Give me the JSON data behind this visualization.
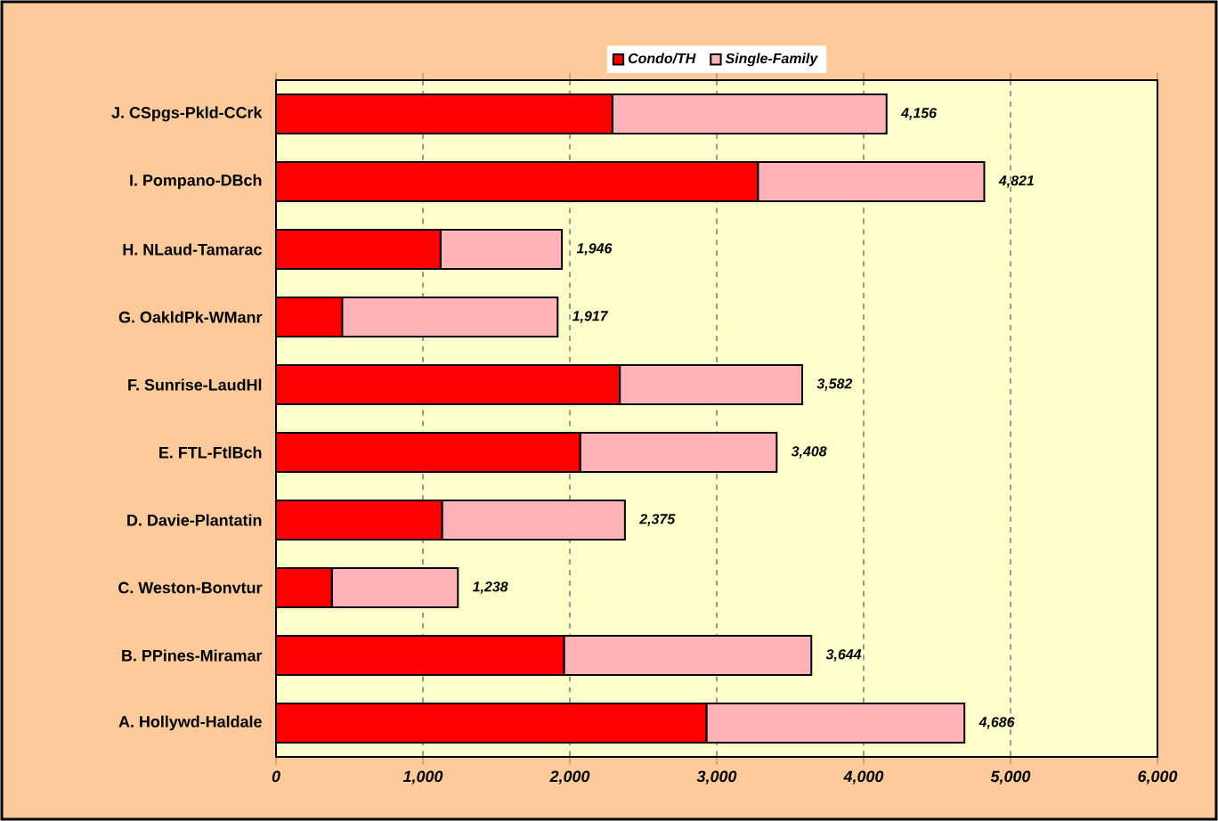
{
  "chart_data": {
    "type": "bar",
    "orientation": "horizontal",
    "stacked": true,
    "categories": [
      "J. CSpgs-Pkld-CCrk",
      "I. Pompano-DBch",
      "H. NLaud-Tamarac",
      "G. OakldPk-WManr",
      "F. Sunrise-LaudHl",
      "E. FTL-FtlBch",
      "D. Davie-Plantatin",
      "C. Weston-Bonvtur",
      "B. PPines-Miramar",
      "A. Hollywd-Haldale"
    ],
    "series": [
      {
        "name": "Condo/TH",
        "color": "#ff0000",
        "values": [
          2290,
          3280,
          1120,
          450,
          2340,
          2070,
          1130,
          380,
          1960,
          2930
        ]
      },
      {
        "name": "Single-Family",
        "color": "#ffb3b8",
        "values": [
          1866,
          1541,
          826,
          1467,
          1242,
          1338,
          1245,
          858,
          1684,
          1756
        ]
      }
    ],
    "totals": [
      "4,156",
      "4,821",
      "1,946",
      "1,917",
      "3,582",
      "3,408",
      "2,375",
      "1,238",
      "3,644",
      "4,686"
    ],
    "xlim": [
      0,
      6000
    ],
    "xticks": [
      0,
      {
        "value": 1000,
        "label": "1,000"
      },
      {
        "value": 2000,
        "label": "2,000"
      },
      {
        "value": 3000,
        "label": "3,000"
      },
      {
        "value": 4000,
        "label": "4,000"
      },
      {
        "value": 5000,
        "label": "5,000"
      },
      {
        "value": 6000,
        "label": "6,000"
      }
    ],
    "grid": "x",
    "legend": "top"
  }
}
